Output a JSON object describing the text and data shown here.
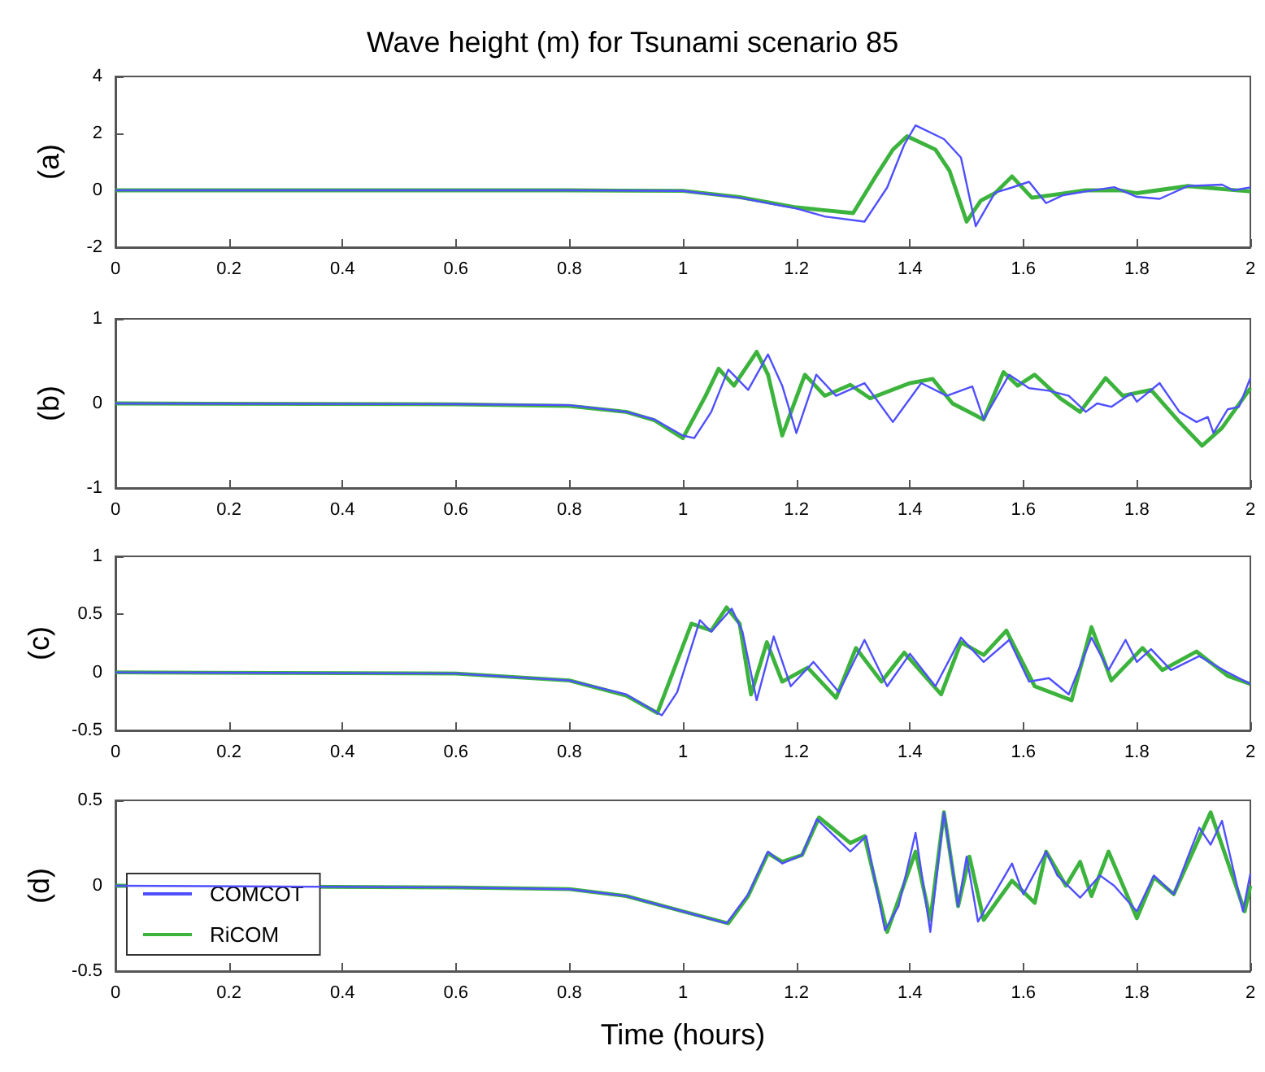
{
  "chart_data": [
    {
      "type": "line",
      "title": "Wave height (m) for Tsunami scenario 85",
      "ylabel": "(a)",
      "xlim": [
        0,
        2
      ],
      "xticks": [
        0,
        0.2,
        0.4,
        0.6,
        0.8,
        1,
        1.2,
        1.4,
        1.6,
        1.8,
        2
      ],
      "ylim": [
        -2,
        4
      ],
      "yticks": [
        -2,
        0,
        2,
        4
      ],
      "grid": false,
      "legend": false,
      "series": [
        {
          "color": "#4f4fff",
          "x": [
            0,
            0.8,
            1.0,
            1.1,
            1.2,
            1.25,
            1.32,
            1.36,
            1.39,
            1.41,
            1.46,
            1.49,
            1.516,
            1.55,
            1.58,
            1.61,
            1.64,
            1.67,
            1.71,
            1.76,
            1.8,
            1.84,
            1.89,
            1.95,
            1.97,
            2.0
          ],
          "values": [
            0,
            0,
            -0.02,
            -0.26,
            -0.64,
            -0.92,
            -1.1,
            0.1,
            1.6,
            2.28,
            1.8,
            1.15,
            -1.26,
            -0.08,
            0.1,
            0.3,
            -0.45,
            -0.17,
            -0.04,
            0.11,
            -0.23,
            -0.3,
            0.15,
            0.2,
            0,
            0.1
          ]
        },
        {
          "color": "#3cb33c",
          "x": [
            0,
            0.8,
            1.0,
            1.1,
            1.2,
            1.3,
            1.34,
            1.37,
            1.395,
            1.445,
            1.47,
            1.5,
            1.525,
            1.55,
            1.58,
            1.615,
            1.65,
            1.71,
            1.77,
            1.8,
            1.89,
            2.0
          ],
          "values": [
            0,
            0,
            -0.02,
            -0.24,
            -0.6,
            -0.8,
            0.5,
            1.43,
            1.9,
            1.43,
            0.68,
            -1.1,
            -0.36,
            -0.1,
            0.49,
            -0.26,
            -0.17,
            0,
            0,
            -0.1,
            0.15,
            -0.04
          ]
        }
      ]
    },
    {
      "type": "line",
      "ylabel": "(b)",
      "xlim": [
        0,
        2
      ],
      "xticks": [
        0,
        0.2,
        0.4,
        0.6,
        0.8,
        1,
        1.2,
        1.4,
        1.6,
        1.8,
        2
      ],
      "ylim": [
        -1,
        1
      ],
      "yticks": [
        -1,
        0,
        1
      ],
      "grid": false,
      "legend": false,
      "series": [
        {
          "color": "#4f4fff",
          "x": [
            0,
            0.6,
            0.8,
            0.9,
            0.95,
            1.0,
            1.02,
            1.05,
            1.08,
            1.115,
            1.15,
            1.175,
            1.2,
            1.235,
            1.27,
            1.32,
            1.37,
            1.42,
            1.465,
            1.51,
            1.53,
            1.575,
            1.61,
            1.645,
            1.68,
            1.71,
            1.73,
            1.755,
            1.79,
            1.8,
            1.84,
            1.875,
            1.905,
            1.925,
            1.935,
            1.96,
            1.98,
            2.0
          ],
          "values": [
            0,
            -0.01,
            -0.02,
            -0.1,
            -0.19,
            -0.38,
            -0.41,
            -0.1,
            0.4,
            0.16,
            0.58,
            0.21,
            -0.35,
            0.34,
            0.09,
            0.24,
            -0.22,
            0.24,
            0.09,
            0.2,
            -0.19,
            0.34,
            0.18,
            0.15,
            0.09,
            -0.1,
            0,
            -0.04,
            0.12,
            0.02,
            0.24,
            -0.1,
            -0.22,
            -0.16,
            -0.35,
            -0.07,
            -0.04,
            0.3
          ]
        },
        {
          "color": "#3cb33c",
          "x": [
            0,
            0.6,
            0.8,
            0.9,
            0.95,
            1.0,
            1.04,
            1.063,
            1.09,
            1.13,
            1.15,
            1.175,
            1.215,
            1.25,
            1.295,
            1.33,
            1.4,
            1.44,
            1.475,
            1.53,
            1.565,
            1.59,
            1.62,
            1.665,
            1.7,
            1.745,
            1.775,
            1.825,
            1.875,
            1.915,
            1.95,
            2.0
          ],
          "values": [
            0,
            -0.01,
            -0.03,
            -0.1,
            -0.2,
            -0.41,
            0.09,
            0.41,
            0.21,
            0.61,
            0.34,
            -0.38,
            0.34,
            0.09,
            0.22,
            0.06,
            0.24,
            0.29,
            0,
            -0.19,
            0.37,
            0.21,
            0.34,
            0.06,
            -0.1,
            0.3,
            0.09,
            0.16,
            -0.22,
            -0.5,
            -0.29,
            0.18
          ]
        }
      ]
    },
    {
      "type": "line",
      "ylabel": "(c)",
      "xlim": [
        0,
        2
      ],
      "xticks": [
        0,
        0.2,
        0.4,
        0.6,
        0.8,
        1,
        1.2,
        1.4,
        1.6,
        1.8,
        2
      ],
      "ylim": [
        -0.5,
        1
      ],
      "yticks": [
        -0.5,
        0,
        0.5,
        1
      ],
      "grid": false,
      "legend": false,
      "series": [
        {
          "color": "#4f4fff",
          "x": [
            0,
            0.6,
            0.8,
            0.9,
            0.963,
            0.99,
            1.03,
            1.05,
            1.086,
            1.105,
            1.13,
            1.16,
            1.19,
            1.23,
            1.275,
            1.32,
            1.36,
            1.4,
            1.445,
            1.49,
            1.53,
            1.575,
            1.61,
            1.645,
            1.68,
            1.72,
            1.75,
            1.78,
            1.8,
            1.825,
            1.86,
            1.91,
            1.96,
            2.0
          ],
          "values": [
            0,
            -0.01,
            -0.07,
            -0.19,
            -0.37,
            -0.17,
            0.45,
            0.35,
            0.55,
            0.35,
            -0.24,
            0.31,
            -0.12,
            0.09,
            -0.17,
            0.28,
            -0.12,
            0.16,
            -0.12,
            0.3,
            0.09,
            0.28,
            -0.08,
            -0.05,
            -0.19,
            0.3,
            0.02,
            0.28,
            0.09,
            0.2,
            0.02,
            0.14,
            0,
            -0.1
          ]
        },
        {
          "color": "#3cb33c",
          "x": [
            0,
            0.6,
            0.8,
            0.9,
            0.955,
            1.015,
            1.05,
            1.077,
            1.1,
            1.12,
            1.148,
            1.175,
            1.22,
            1.27,
            1.305,
            1.35,
            1.39,
            1.455,
            1.49,
            1.53,
            1.57,
            1.62,
            1.685,
            1.72,
            1.755,
            1.81,
            1.845,
            1.905,
            1.96,
            2.0
          ],
          "values": [
            0,
            -0.01,
            -0.07,
            -0.2,
            -0.35,
            0.42,
            0.36,
            0.56,
            0.42,
            -0.19,
            0.26,
            -0.08,
            0.04,
            -0.22,
            0.21,
            -0.08,
            0.17,
            -0.19,
            0.26,
            0.15,
            0.36,
            -0.12,
            -0.24,
            0.39,
            -0.07,
            0.21,
            0.02,
            0.18,
            -0.03,
            -0.1
          ]
        }
      ]
    },
    {
      "type": "line",
      "xlabel": "Time (hours)",
      "ylabel": "(d)",
      "xlim": [
        0,
        2
      ],
      "xticks": [
        0,
        0.2,
        0.4,
        0.6,
        0.8,
        1,
        1.2,
        1.4,
        1.6,
        1.8,
        2
      ],
      "ylim": [
        -0.5,
        0.5
      ],
      "yticks": [
        -0.5,
        0,
        0.5
      ],
      "grid": false,
      "legend": "bottom left",
      "series": [
        {
          "name": "COMCOT",
          "color": "#4f4fff",
          "x": [
            0,
            0.6,
            0.8,
            0.9,
            1.0,
            1.077,
            1.115,
            1.15,
            1.175,
            1.21,
            1.236,
            1.295,
            1.323,
            1.356,
            1.38,
            1.41,
            1.436,
            1.46,
            1.485,
            1.5,
            1.52,
            1.58,
            1.6,
            1.64,
            1.66,
            1.7,
            1.735,
            1.76,
            1.8,
            1.83,
            1.865,
            1.89,
            1.91,
            1.93,
            1.95,
            1.987,
            2.0
          ],
          "values": [
            0,
            -0.01,
            -0.02,
            -0.06,
            -0.15,
            -0.22,
            -0.05,
            0.2,
            0.13,
            0.18,
            0.39,
            0.2,
            0.29,
            -0.26,
            -0.12,
            0.31,
            -0.27,
            0.43,
            -0.12,
            0.17,
            -0.21,
            0.13,
            -0.05,
            0.2,
            0.06,
            -0.07,
            0.06,
            0,
            -0.15,
            0.06,
            -0.05,
            0.17,
            0.34,
            0.24,
            0.38,
            -0.15,
            0.07
          ]
        },
        {
          "name": "RiCOM",
          "color": "#3cb33c",
          "x": [
            0,
            0.6,
            0.8,
            0.9,
            1.0,
            1.08,
            1.115,
            1.15,
            1.175,
            1.21,
            1.24,
            1.295,
            1.32,
            1.36,
            1.41,
            1.436,
            1.46,
            1.485,
            1.505,
            1.53,
            1.58,
            1.62,
            1.64,
            1.675,
            1.7,
            1.72,
            1.75,
            1.8,
            1.83,
            1.865,
            1.93,
            1.99,
            2.0
          ],
          "values": [
            0,
            -0.01,
            -0.02,
            -0.06,
            -0.15,
            -0.22,
            -0.06,
            0.19,
            0.14,
            0.18,
            0.4,
            0.25,
            0.29,
            -0.27,
            0.2,
            -0.2,
            0.43,
            -0.12,
            0.17,
            -0.2,
            0.03,
            -0.1,
            0.2,
            0,
            0.14,
            -0.06,
            0.2,
            -0.19,
            0.05,
            -0.05,
            0.43,
            -0.15,
            0
          ]
        }
      ]
    }
  ]
}
